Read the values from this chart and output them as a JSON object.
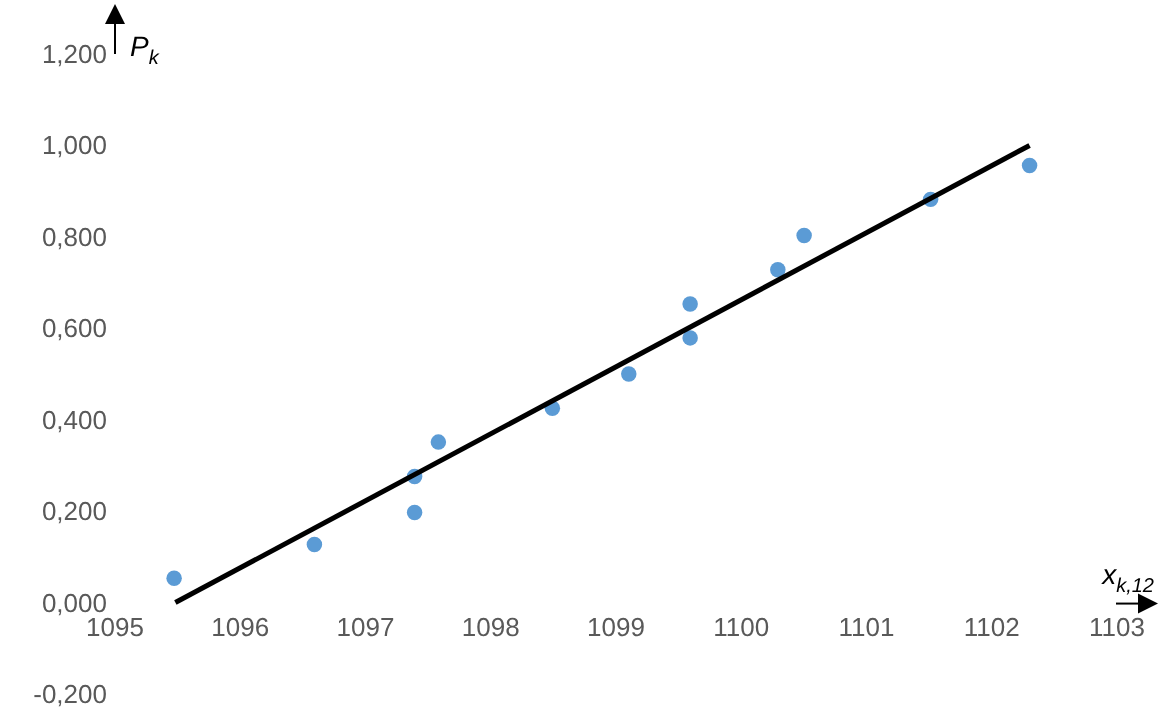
{
  "chart_data": {
    "type": "scatter",
    "xlabel": "x$_{k,12}$",
    "ylabel": "P$_{k}$",
    "xlim": [
      1095,
      1103
    ],
    "xticks": [
      1095,
      1096,
      1097,
      1098,
      1099,
      1100,
      1101,
      1102,
      1103
    ],
    "ylim": [
      -0.2,
      1.2
    ],
    "yticks": [
      {
        "value": -0.2,
        "label": "-0,200"
      },
      {
        "value": 0,
        "label": "0,000"
      },
      {
        "value": 0.2,
        "label": "0,200"
      },
      {
        "value": 0.4,
        "label": "0,400"
      },
      {
        "value": 0.6,
        "label": "0,600"
      },
      {
        "value": 0.8,
        "label": "0,800"
      },
      {
        "value": 1.0,
        "label": "1,000"
      },
      {
        "value": 1.2,
        "label": "1,200"
      }
    ],
    "grid": false,
    "marker": "circle",
    "series": [
      {
        "color": "#5b9bd5",
        "x": [
          1095.48,
          1096.6,
          1097.4,
          1097.4,
          1097.59,
          1098.5,
          1099.11,
          1099.6,
          1099.6,
          1100.3,
          1100.51,
          1101.52,
          1102.31
        ],
        "values": [
          0.053,
          0.127,
          0.276,
          0.197,
          0.351,
          0.425,
          0.5,
          0.653,
          0.579,
          0.728,
          0.803,
          0.882,
          0.956
        ]
      },
      {
        "type": "line",
        "color": "#000000",
        "line_style": "solid",
        "marker": "none",
        "x": [
          1095.49,
          1102.31
        ],
        "values": [
          0,
          1.0
        ]
      }
    ]
  }
}
